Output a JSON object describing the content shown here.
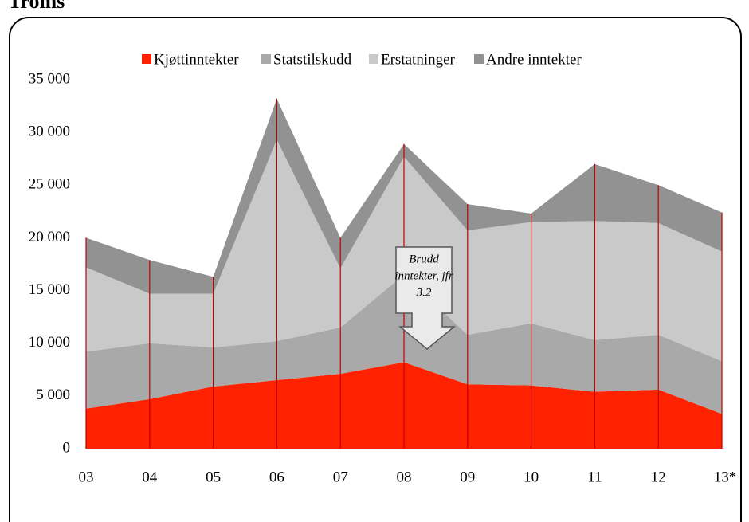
{
  "chart_data": {
    "type": "stacked_area",
    "heading": "Troms",
    "categories": [
      "03",
      "04",
      "05",
      "06",
      "07",
      "08",
      "09",
      "10",
      "11",
      "12",
      "13*"
    ],
    "series": [
      {
        "name": "Kjøttinntekter",
        "color": "#ff2200",
        "values": [
          3800,
          4700,
          5900,
          6500,
          7100,
          8200,
          6100,
          6000,
          5400,
          5600,
          3300
        ]
      },
      {
        "name": "Statstilskudd",
        "color": "#a9a9a9",
        "values": [
          5400,
          5300,
          3700,
          3700,
          4400,
          8300,
          4700,
          5900,
          4900,
          5200,
          5000
        ]
      },
      {
        "name": "Erstatninger",
        "color": "#c9c9c9",
        "values": [
          8000,
          4700,
          5100,
          19100,
          5600,
          11200,
          9900,
          9600,
          11300,
          10600,
          10400
        ]
      },
      {
        "name": "Andre inntekter",
        "color": "#929292",
        "values": [
          2800,
          3200,
          1600,
          3900,
          2900,
          1200,
          2500,
          800,
          5400,
          3600,
          3700
        ]
      }
    ],
    "ylim": [
      0,
      35000
    ],
    "yticks": [
      0,
      {
        "value": 5000,
        "label": "5 000"
      },
      {
        "value": 10000,
        "label": "10 000"
      },
      {
        "value": 15000,
        "label": "15 000"
      },
      {
        "value": 20000,
        "label": "20 000"
      },
      {
        "value": 25000,
        "label": "25 000"
      },
      {
        "value": 30000,
        "label": "30 000"
      },
      {
        "value": 35000,
        "label": "35 000"
      }
    ],
    "annotation": [
      "Brudd",
      "inntekter, jfr",
      "3.2"
    ],
    "drop_line_color": "#c00000"
  }
}
